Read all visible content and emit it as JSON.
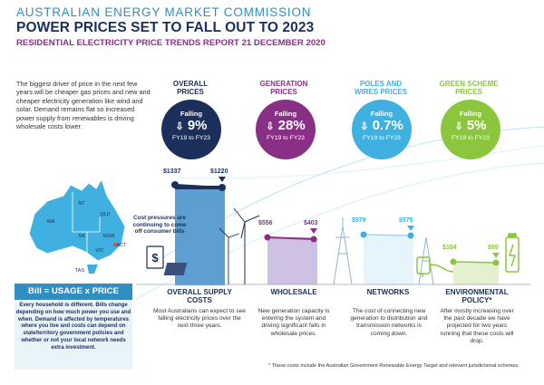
{
  "header": {
    "org": "AUSTRALIAN ENERGY MARKET COMMISSION",
    "title": "POWER PRICES SET TO FALL OUT TO 2023",
    "subtitle": "RESIDENTIAL ELECTRICITY PRICE TRENDS REPORT 21 DECEMBER 2020"
  },
  "intro": "The biggest driver of price in the next few years will be cheaper gas prices and new and cheaper electricity generation like wind and solar. Demand remains flat so increased power supply from renewables is driving wholesale costs lower.",
  "columns": [
    {
      "title": "OVERALL PRICES",
      "falling": "Falling",
      "pct": "9%",
      "period": "FY19 to FY23",
      "color": "#1b2f5a",
      "start": "$1337",
      "end": "$1220",
      "section": "OVERALL SUPPLY COSTS",
      "desc": "Most Australians can expect to see falling electricity prices over the next three years."
    },
    {
      "title": "GENERATION PRICES",
      "falling": "Falling",
      "pct": "28%",
      "period": "FY19 to FY23",
      "color": "#8a2f86",
      "start": "$556",
      "end": "$403",
      "section": "WHOLESALE",
      "desc": "New generation capacity is entering the system and driving significant falls in wholesale prices."
    },
    {
      "title": "POLES AND WIRES PRICES",
      "falling": "Falling",
      "pct": "0.7%",
      "period": "FY19 to FY23",
      "color": "#3fb0e0",
      "start": "$579",
      "end": "$575",
      "section": "NETWORKS",
      "desc": "The cost of connecting new generation to distribution and transmission networks is coming down."
    },
    {
      "title": "GREEN SCHEME PRICES",
      "falling": "Falling",
      "pct": "5%",
      "period": "FY19 to FY23",
      "color": "#8cc63f",
      "start": "$104",
      "end": "$99",
      "section": "ENVIRONMENTAL POLICY*",
      "desc": "After mostly increasing over the past decade we have projected for two years running that these costs will drop."
    }
  ],
  "note": "Cost pressures are continuing to come off consumer bills",
  "states": [
    "WA",
    "NT",
    "QLD",
    "SA",
    "NSW",
    "VIC",
    "ACT",
    "TAS"
  ],
  "equation": {
    "title": "Bill = USAGE x PRICE",
    "text": "Every household is different. Bills change depending on how much power you use and when. Demand is affected by temperatures where you live and costs can depend on state/territory government policies and whether or not your local network needs extra investment."
  },
  "footnote": "* These costs include the Australian Government Renewable Energy Target and relevant jurisdictional schemes.",
  "colors": {
    "navy": "#1b2f5a",
    "purple": "#8a2f86",
    "blue": "#3fb0e0",
    "green": "#8cc63f",
    "mid_blue": "#2f8fc3"
  }
}
